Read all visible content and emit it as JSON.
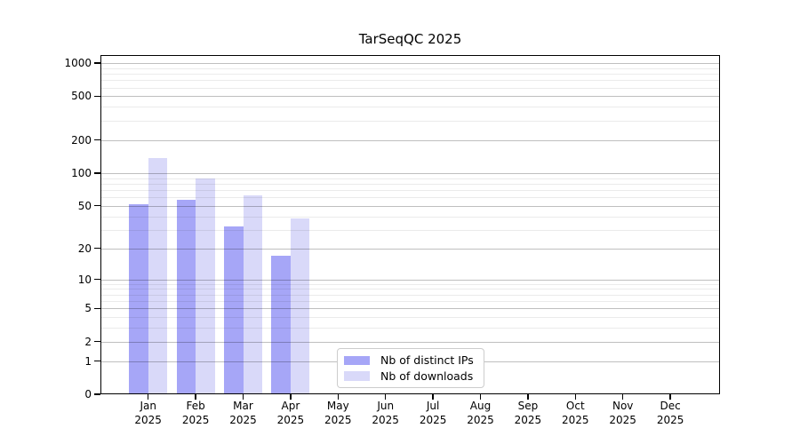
{
  "chart_data": {
    "type": "bar",
    "title": "TarSeqQC 2025",
    "year_label": "2025",
    "categories": [
      "Jan",
      "Feb",
      "Mar",
      "Apr",
      "May",
      "Jun",
      "Jul",
      "Aug",
      "Sep",
      "Oct",
      "Nov",
      "Dec"
    ],
    "series": [
      {
        "name": "Nb of distinct IPs",
        "color": "#a6a6f7",
        "values": [
          52,
          57,
          32,
          17,
          0,
          0,
          0,
          0,
          0,
          0,
          0,
          0
        ]
      },
      {
        "name": "Nb of downloads",
        "color": "#d9d9f9",
        "values": [
          138,
          90,
          63,
          38,
          0,
          0,
          0,
          0,
          0,
          0,
          0,
          0
        ]
      }
    ],
    "y_axis": {
      "ticks": [
        0,
        1,
        2,
        5,
        10,
        20,
        50,
        100,
        200,
        500,
        1000
      ],
      "scale": "log10(1+x)",
      "ylim": [
        0,
        1180
      ]
    },
    "x_axis": {
      "tick_style": "month-over-year-two-lines"
    },
    "legend": {
      "position": "inside-bottom-center",
      "entries": [
        "Nb of distinct IPs",
        "Nb of downloads"
      ]
    },
    "grid": {
      "major": "on",
      "minor": "on"
    },
    "colors": {
      "frame": "#000000",
      "background": "#ffffff",
      "major_grid": "#bfbfbf",
      "minor_grid": "#ebebeb",
      "text": "#000000"
    }
  }
}
